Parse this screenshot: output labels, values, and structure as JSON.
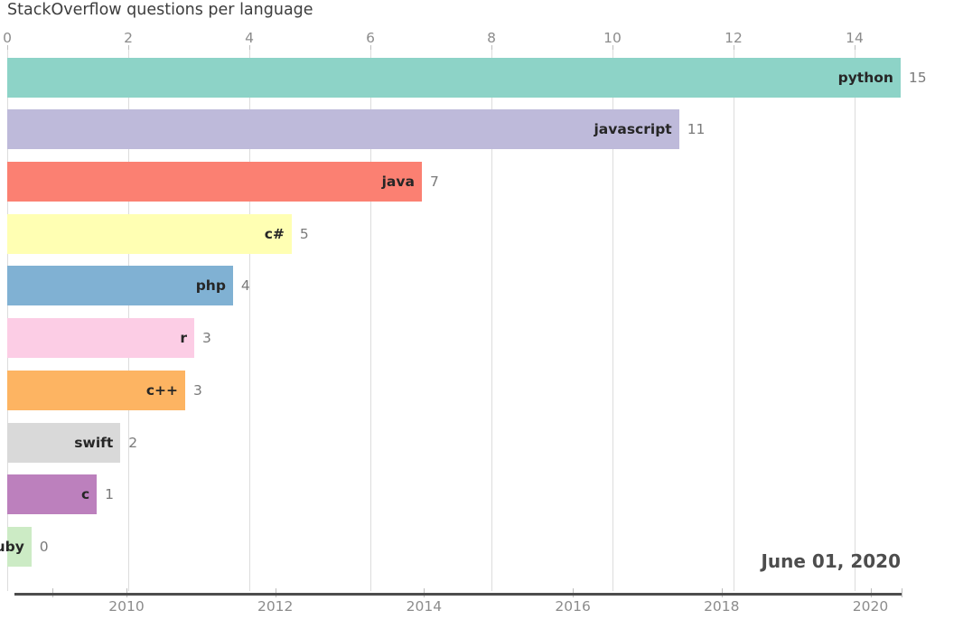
{
  "title": "StackOverflow questions per language",
  "date_label": "June 01, 2020",
  "colors": {
    "background": "#ffffff",
    "title_text": "#3d3d3d",
    "axis_text": "#8c8c8c",
    "grid_line": "#dcdcdc",
    "tick_mark": "#bdbdbd",
    "bottom_axis_line": "#4d4d4d",
    "bar_label_text": "#262626",
    "value_text": "#7a7a7a",
    "date_text": "#4d4d4d"
  },
  "chart_data": {
    "type": "bar",
    "orientation": "horizontal",
    "title": "StackOverflow questions per language",
    "categories": [
      "python",
      "javascript",
      "java",
      "c#",
      "php",
      "r",
      "c++",
      "swift",
      "c",
      "ruby"
    ],
    "values": [
      15,
      11,
      7,
      5,
      4,
      3,
      3,
      2,
      1,
      0
    ],
    "values_exact": [
      14.76,
      11.1,
      6.85,
      4.7,
      3.73,
      3.09,
      2.94,
      1.87,
      1.48,
      0.4
    ],
    "bar_colors": [
      "#8dd3c7",
      "#bebada",
      "#fb8072",
      "#ffffb3",
      "#80b1d3",
      "#fccde5",
      "#fdb462",
      "#d9d9d9",
      "#bc80bd",
      "#ccebc5"
    ],
    "value_axis": {
      "position": "top",
      "ticks": [
        0,
        2,
        4,
        6,
        8,
        10,
        12,
        14
      ],
      "range": [
        0,
        15.8
      ],
      "grid": true
    },
    "time_axis": {
      "position": "bottom",
      "tick_labels": [
        2010,
        2012,
        2014,
        2016,
        2018,
        2020
      ],
      "range_years": [
        2008.5,
        2020.42
      ],
      "current_date": "June 01, 2020"
    },
    "legend": false
  }
}
